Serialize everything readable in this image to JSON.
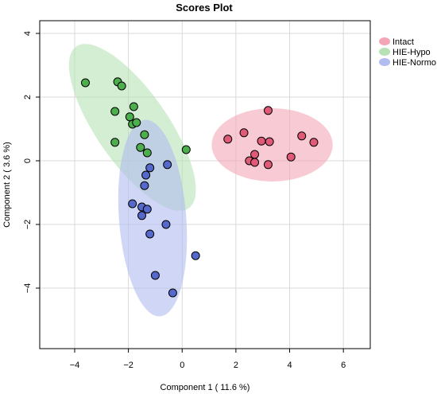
{
  "chart_data": {
    "type": "scatter",
    "title": "Scores Plot",
    "xlabel": "Component 1 ( 11.6 %)",
    "ylabel": "Component 2 ( 3.6 %)",
    "xlim": [
      -5.3,
      7.0
    ],
    "ylim": [
      -5.9,
      4.4
    ],
    "x_ticks": [
      -4,
      -2,
      0,
      2,
      4,
      6
    ],
    "y_ticks": [
      4,
      2,
      0,
      -2,
      -4
    ],
    "grid": true,
    "legend_position": "top-right",
    "series": [
      {
        "name": "Intact",
        "color": "#e05a77",
        "fill": "#f4a6b6",
        "ellipse": {
          "cx": 3.35,
          "cy": 0.5,
          "rx": 2.25,
          "ry": 1.15,
          "angle": 0
        },
        "points": [
          {
            "x": 1.7,
            "y": 0.68
          },
          {
            "x": 2.3,
            "y": 0.88
          },
          {
            "x": 3.2,
            "y": 1.58
          },
          {
            "x": 2.95,
            "y": 0.62
          },
          {
            "x": 3.25,
            "y": 0.6
          },
          {
            "x": 2.7,
            "y": 0.2
          },
          {
            "x": 2.5,
            "y": 0.0
          },
          {
            "x": 2.7,
            "y": -0.05
          },
          {
            "x": 3.2,
            "y": -0.12
          },
          {
            "x": 4.45,
            "y": 0.78
          },
          {
            "x": 4.9,
            "y": 0.58
          },
          {
            "x": 4.05,
            "y": 0.12
          }
        ]
      },
      {
        "name": "HIE-Hypo",
        "color": "#4dae4d",
        "fill": "#b7e2b5",
        "ellipse": {
          "cx": -1.85,
          "cy": 1.05,
          "rx": 3.3,
          "ry": 1.25,
          "angle": -49
        },
        "points": [
          {
            "x": -3.6,
            "y": 2.45
          },
          {
            "x": -2.4,
            "y": 2.48
          },
          {
            "x": -2.25,
            "y": 2.35
          },
          {
            "x": -1.8,
            "y": 1.7
          },
          {
            "x": -2.5,
            "y": 1.55
          },
          {
            "x": -1.95,
            "y": 1.38
          },
          {
            "x": -1.85,
            "y": 1.15
          },
          {
            "x": -1.7,
            "y": 1.2
          },
          {
            "x": -1.4,
            "y": 0.82
          },
          {
            "x": -2.5,
            "y": 0.58
          },
          {
            "x": -1.55,
            "y": 0.42
          },
          {
            "x": -1.3,
            "y": 0.25
          },
          {
            "x": 0.15,
            "y": 0.35
          }
        ]
      },
      {
        "name": "HIE-Normo",
        "color": "#5568cc",
        "fill": "#b1bcf0",
        "ellipse": {
          "cx": -1.1,
          "cy": -1.8,
          "rx": 3.1,
          "ry": 1.25,
          "angle": -84.5
        },
        "points": [
          {
            "x": -0.55,
            "y": -0.12
          },
          {
            "x": -1.2,
            "y": -0.22
          },
          {
            "x": -1.35,
            "y": -0.45
          },
          {
            "x": -1.4,
            "y": -0.78
          },
          {
            "x": -1.85,
            "y": -1.35
          },
          {
            "x": -1.5,
            "y": -1.45
          },
          {
            "x": -1.3,
            "y": -1.52
          },
          {
            "x": -1.5,
            "y": -1.72
          },
          {
            "x": -0.6,
            "y": -2.0
          },
          {
            "x": -1.2,
            "y": -2.3
          },
          {
            "x": 0.5,
            "y": -2.98
          },
          {
            "x": -1.0,
            "y": -3.6
          },
          {
            "x": -0.35,
            "y": -4.15
          }
        ]
      }
    ]
  }
}
